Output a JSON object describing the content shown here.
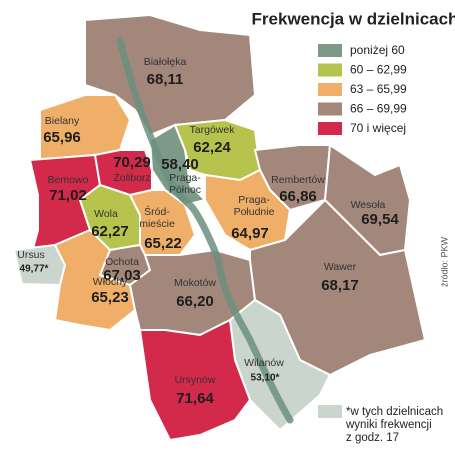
{
  "title": "Frekwencja w dzielnicach",
  "legend": {
    "items": [
      {
        "label": "poniżej 60",
        "color": "#7d9a89"
      },
      {
        "label": "60 – 62,99",
        "color": "#b6c34c"
      },
      {
        "label": "63 – 65,99",
        "color": "#efaf68"
      },
      {
        "label": "66 – 69,99",
        "color": "#a3877a"
      },
      {
        "label": "70 i więcej",
        "color": "#d32a4b"
      }
    ]
  },
  "districts": [
    {
      "name_lines": [
        "Białołęka"
      ],
      "value": "68,11",
      "color": "#a3877a"
    },
    {
      "name_lines": [
        "Bielany"
      ],
      "value": "65,96",
      "color": "#efaf68"
    },
    {
      "name_lines": [
        "Bemowo"
      ],
      "value": "71,02",
      "color": "#d32a4b"
    },
    {
      "name_lines": [
        "Żoliborz"
      ],
      "value": "70,29",
      "color": "#d32a4b"
    },
    {
      "name_lines": [
        "Praga-",
        "Północ"
      ],
      "value": "58,40",
      "color": "#7d9a89"
    },
    {
      "name_lines": [
        "Targówek"
      ],
      "value": "62,24",
      "color": "#b6c34c"
    },
    {
      "name_lines": [
        "Rembertów"
      ],
      "value": "66,86",
      "color": "#a3877a"
    },
    {
      "name_lines": [
        "Wesoła"
      ],
      "value": "69,54",
      "color": "#a3877a"
    },
    {
      "name_lines": [
        "Praga-",
        "Południe"
      ],
      "value": "64,97",
      "color": "#efaf68"
    },
    {
      "name_lines": [
        "Wola"
      ],
      "value": "62,27",
      "color": "#b6c34c"
    },
    {
      "name_lines": [
        "Śród-",
        "mieście"
      ],
      "value": "65,22",
      "color": "#efaf68"
    },
    {
      "name_lines": [
        "Ochota"
      ],
      "value": "67,03",
      "color": "#a3877a"
    },
    {
      "name_lines": [
        "Ursus"
      ],
      "value": "49,77*",
      "color": "#c9d5cd"
    },
    {
      "name_lines": [
        "Włochy"
      ],
      "value": "65,23",
      "color": "#efaf68"
    },
    {
      "name_lines": [
        "Mokotów"
      ],
      "value": "66,20",
      "color": "#a3877a"
    },
    {
      "name_lines": [
        "Wawer"
      ],
      "value": "68,17",
      "color": "#a3877a"
    },
    {
      "name_lines": [
        "Wilanów"
      ],
      "value": "53,10*",
      "color": "#c9d5cd"
    },
    {
      "name_lines": [
        "Ursynów"
      ],
      "value": "71,64",
      "color": "#d32a4b"
    }
  ],
  "footnote": {
    "color": "#c9d5cd",
    "lines": [
      "*w tych dzielnicach",
      "wyniki frekwencji",
      "z godz. 17"
    ]
  },
  "source": "źródło: PKW"
}
